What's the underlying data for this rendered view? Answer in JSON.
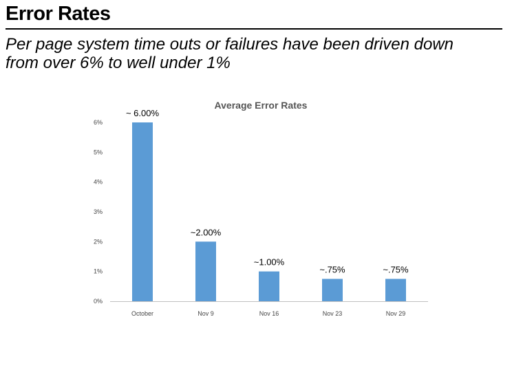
{
  "slide": {
    "title": "Error Rates",
    "subtitle_lines": [
      "Per page system time outs or failures have been driven down",
      "from over 6% to well  under 1%"
    ]
  },
  "chart_data": {
    "type": "bar",
    "title": "Average Error  Rates",
    "xlabel": "",
    "ylabel": "",
    "categories": [
      "October",
      "Nov 9",
      "Nov 16",
      "Nov 23",
      "Nov 29"
    ],
    "values": [
      6.0,
      2.0,
      1.0,
      0.75,
      0.75
    ],
    "data_labels": [
      "~ 6.00%",
      "~2.00%",
      "~1.00%",
      "~.75%",
      "~.75%"
    ],
    "y_ticks": [
      0,
      1,
      2,
      3,
      4,
      5,
      6
    ],
    "y_tick_labels": [
      "0%",
      "1%",
      "2%",
      "3%",
      "4%",
      "5%",
      "6%"
    ],
    "ylim": [
      0,
      6
    ],
    "grid": false,
    "legend": "none",
    "bar_color": "#5b9bd5",
    "axis_color": "#bfbfbf"
  }
}
